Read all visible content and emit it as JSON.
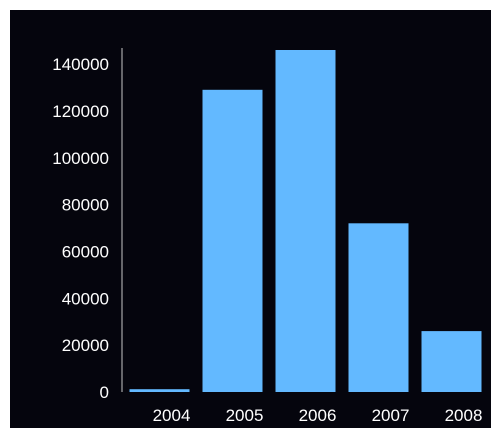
{
  "chart_data": {
    "type": "bar",
    "title": "",
    "xlabel": "",
    "ylabel": "",
    "categories": [
      "2004",
      "2005",
      "2006",
      "2007",
      "2008"
    ],
    "values": [
      1200,
      129000,
      146000,
      72000,
      26000
    ],
    "ylim": [
      0,
      146000
    ],
    "yticks": [
      0,
      20000,
      40000,
      60000,
      80000,
      100000,
      120000,
      140000
    ],
    "ytick_labels": [
      "0",
      "20000",
      "40000",
      "60000",
      "80000",
      "100000",
      "120000",
      "140000"
    ],
    "grid": false,
    "legend": "none",
    "colors": {
      "background": "#05050d",
      "bar": "#63b9ff",
      "text": "#ffffff",
      "axis": "#c8c8c8"
    }
  }
}
